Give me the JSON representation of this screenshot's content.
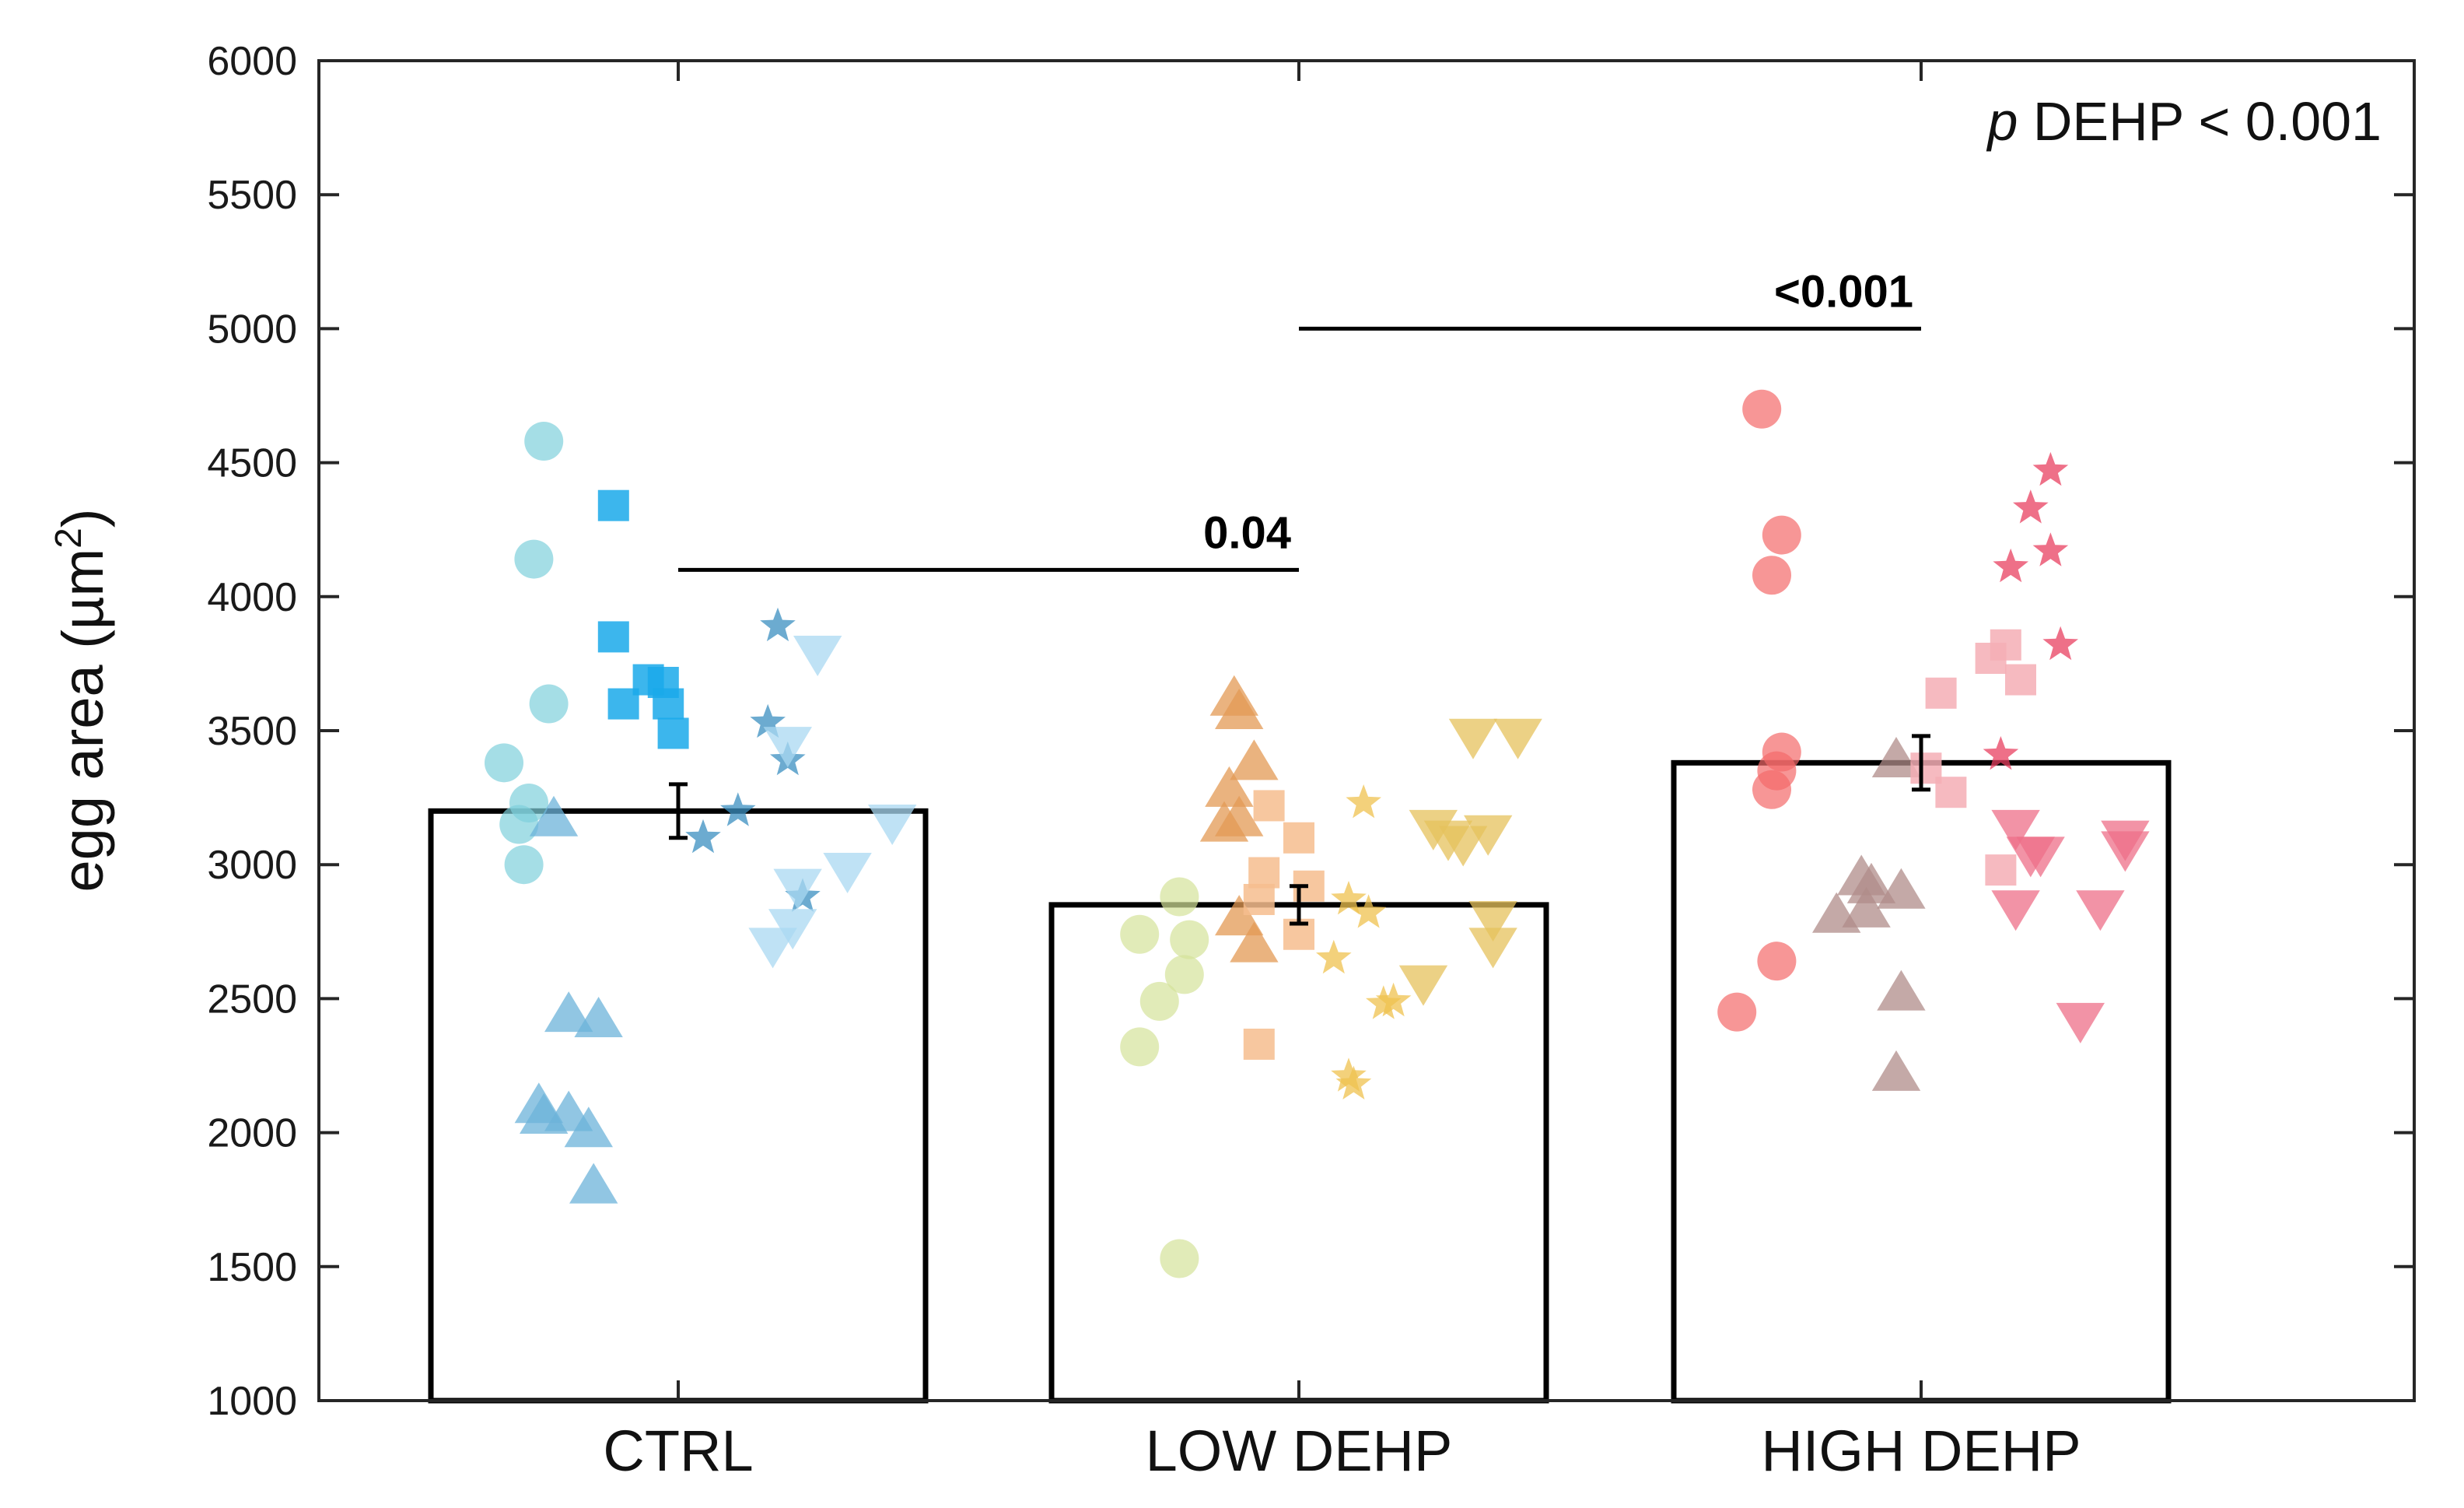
{
  "chart_data": {
    "type": "bar",
    "title": "",
    "xlabel": "",
    "ylabel": "egg area (µm²)",
    "ylabel_base": "egg area (µm",
    "ylabel_sup": "2",
    "ylabel_close": ")",
    "ylim": [
      1000,
      6000
    ],
    "yticks": [
      1000,
      1500,
      2000,
      2500,
      3000,
      3500,
      4000,
      4500,
      5000,
      5500,
      6000
    ],
    "categories": [
      "CTRL",
      "LOW DEHP",
      "HIGH DEHP"
    ],
    "values": [
      3200,
      2850,
      3380
    ],
    "errors": [
      100,
      70,
      100
    ],
    "annotation": {
      "italic": "p",
      "text": " DEHP < 0.001"
    },
    "comparisons": [
      {
        "from": "CTRL",
        "to": "LOW DEHP",
        "y": 4100,
        "label": "0.04"
      },
      {
        "from": "LOW DEHP",
        "to": "HIGH DEHP",
        "y": 5000,
        "label": "<0.001"
      }
    ],
    "points": [
      {
        "group": "CTRL",
        "marker": "circle",
        "color": "#7fd0dc",
        "data": [
          [
            -0.27,
            4580
          ],
          [
            -0.29,
            4140
          ],
          [
            -0.26,
            3600
          ],
          [
            -0.35,
            3380
          ],
          [
            -0.3,
            3230
          ],
          [
            -0.32,
            3150
          ],
          [
            -0.31,
            3000
          ]
        ]
      },
      {
        "group": "CTRL",
        "marker": "square",
        "color": "#1aa9ea",
        "data": [
          [
            -0.13,
            4340
          ],
          [
            -0.13,
            3850
          ],
          [
            -0.11,
            3600
          ],
          [
            -0.06,
            3690
          ],
          [
            -0.03,
            3680
          ],
          [
            -0.02,
            3600
          ],
          [
            -0.01,
            3490
          ]
        ]
      },
      {
        "group": "CTRL",
        "marker": "triangle-up",
        "color": "#6cb3d9",
        "data": [
          [
            -0.25,
            3170
          ],
          [
            -0.22,
            2440
          ],
          [
            -0.16,
            2420
          ],
          [
            -0.28,
            2100
          ],
          [
            -0.27,
            2060
          ],
          [
            -0.22,
            2070
          ],
          [
            -0.18,
            2010
          ],
          [
            -0.17,
            1800
          ]
        ]
      },
      {
        "group": "CTRL",
        "marker": "star",
        "color": "#3b8fc0",
        "data": [
          [
            0.05,
            3100
          ],
          [
            0.12,
            3200
          ],
          [
            0.2,
            3890
          ],
          [
            0.18,
            3530
          ],
          [
            0.22,
            3390
          ],
          [
            0.25,
            2880
          ]
        ]
      },
      {
        "group": "CTRL",
        "marker": "triangle-down",
        "color": "#a9d8f1",
        "data": [
          [
            0.28,
            3790
          ],
          [
            0.22,
            3450
          ],
          [
            0.24,
            2920
          ],
          [
            0.23,
            2770
          ],
          [
            0.19,
            2700
          ],
          [
            0.34,
            2980
          ],
          [
            0.43,
            3160
          ]
        ]
      },
      {
        "group": "LOW DEHP",
        "marker": "circle",
        "color": "#d4e39a",
        "data": [
          [
            -0.24,
            2880
          ],
          [
            -0.32,
            2740
          ],
          [
            -0.22,
            2720
          ],
          [
            -0.23,
            2590
          ],
          [
            -0.28,
            2490
          ],
          [
            -0.32,
            2320
          ],
          [
            -0.24,
            1530
          ]
        ]
      },
      {
        "group": "LOW DEHP",
        "marker": "triangle-up",
        "color": "#e39a54",
        "data": [
          [
            -0.13,
            3620
          ],
          [
            -0.12,
            3570
          ],
          [
            -0.09,
            3380
          ],
          [
            -0.14,
            3280
          ],
          [
            -0.15,
            3150
          ],
          [
            -0.12,
            3170
          ],
          [
            -0.12,
            2800
          ],
          [
            -0.09,
            2700
          ]
        ]
      },
      {
        "group": "LOW DEHP",
        "marker": "square",
        "color": "#f6bd8e",
        "data": [
          [
            -0.06,
            3220
          ],
          [
            0.0,
            3100
          ],
          [
            -0.07,
            2970
          ],
          [
            -0.08,
            2870
          ],
          [
            0.02,
            2920
          ],
          [
            0.0,
            2740
          ],
          [
            -0.08,
            2330
          ]
        ]
      },
      {
        "group": "LOW DEHP",
        "marker": "star",
        "color": "#efc24f",
        "data": [
          [
            0.13,
            3230
          ],
          [
            0.1,
            2870
          ],
          [
            0.14,
            2820
          ],
          [
            0.07,
            2650
          ],
          [
            0.17,
            2480
          ],
          [
            0.19,
            2490
          ],
          [
            0.1,
            2210
          ],
          [
            0.11,
            2180
          ]
        ]
      },
      {
        "group": "LOW DEHP",
        "marker": "triangle-down",
        "color": "#e5c15c",
        "data": [
          [
            0.35,
            3480
          ],
          [
            0.44,
            3480
          ],
          [
            0.27,
            3140
          ],
          [
            0.3,
            3100
          ],
          [
            0.33,
            3080
          ],
          [
            0.38,
            3120
          ],
          [
            0.39,
            2800
          ],
          [
            0.39,
            2700
          ],
          [
            0.25,
            2560
          ]
        ]
      },
      {
        "group": "HIGH DEHP",
        "marker": "circle",
        "color": "#f46a6a",
        "data": [
          [
            -0.32,
            4700
          ],
          [
            -0.28,
            4230
          ],
          [
            -0.3,
            4080
          ],
          [
            -0.28,
            3420
          ],
          [
            -0.29,
            3350
          ],
          [
            -0.3,
            3280
          ],
          [
            -0.29,
            2640
          ],
          [
            -0.37,
            2450
          ]
        ]
      },
      {
        "group": "HIGH DEHP",
        "marker": "triangle-up",
        "color": "#b08c8a",
        "data": [
          [
            -0.12,
            2950
          ],
          [
            -0.1,
            2920
          ],
          [
            -0.04,
            2900
          ],
          [
            -0.17,
            2810
          ],
          [
            -0.11,
            2830
          ],
          [
            -0.04,
            2520
          ],
          [
            -0.05,
            2220
          ],
          [
            -0.05,
            3390
          ]
        ]
      },
      {
        "group": "HIGH DEHP",
        "marker": "square",
        "color": "#f5aeb5",
        "data": [
          [
            0.04,
            3640
          ],
          [
            0.14,
            3770
          ],
          [
            0.17,
            3820
          ],
          [
            0.2,
            3690
          ],
          [
            0.01,
            3360
          ],
          [
            0.06,
            3270
          ],
          [
            0.16,
            2980
          ]
        ]
      },
      {
        "group": "HIGH DEHP",
        "marker": "star",
        "color": "#e84060",
        "data": [
          [
            0.26,
            4470
          ],
          [
            0.22,
            4330
          ],
          [
            0.26,
            4170
          ],
          [
            0.18,
            4110
          ],
          [
            0.28,
            3820
          ],
          [
            0.16,
            3410
          ]
        ]
      },
      {
        "group": "HIGH DEHP",
        "marker": "triangle-down",
        "color": "#ee6f88",
        "data": [
          [
            0.19,
            3140
          ],
          [
            0.22,
            3040
          ],
          [
            0.24,
            3040
          ],
          [
            0.19,
            2840
          ],
          [
            0.36,
            2840
          ],
          [
            0.32,
            2420
          ],
          [
            0.41,
            3100
          ],
          [
            0.41,
            3060
          ]
        ]
      }
    ]
  }
}
